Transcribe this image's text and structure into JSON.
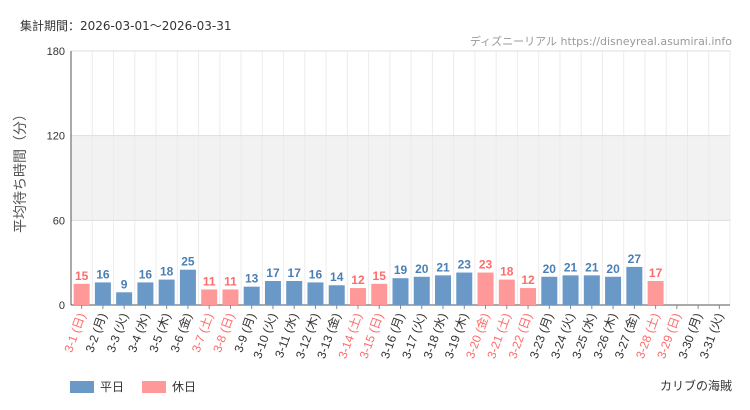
{
  "header": {
    "period": "集計期間：2026-03-01～2026-03-31",
    "credit": "ディズニーリアル https://disneyreal.asumirai.info"
  },
  "legend": {
    "weekday": "平日",
    "holiday": "休日"
  },
  "caption": "カリブの海賊",
  "colors": {
    "weekday": "#6a99c8",
    "holiday": "#ff9999",
    "weekday_text": "#4a7fb5",
    "holiday_text": "#ff6b6b",
    "band": "#f2f2f2"
  },
  "chart_data": {
    "type": "bar",
    "ylabel": "平均待ち時間（分）",
    "ylim": [
      0,
      180
    ],
    "yticks": [
      0,
      60,
      120,
      180
    ],
    "shaded_band": [
      60,
      120
    ],
    "grid": true,
    "legend_position": "bottom-left",
    "categories": [
      "3-1 (日)",
      "3-2 (月)",
      "3-3 (火)",
      "3-4 (水)",
      "3-5 (木)",
      "3-6 (金)",
      "3-7 (土)",
      "3-8 (日)",
      "3-9 (月)",
      "3-10 (火)",
      "3-11 (水)",
      "3-12 (木)",
      "3-13 (金)",
      "3-14 (土)",
      "3-15 (日)",
      "3-16 (月)",
      "3-17 (火)",
      "3-18 (水)",
      "3-19 (木)",
      "3-20 (金)",
      "3-21 (土)",
      "3-22 (日)",
      "3-23 (月)",
      "3-24 (火)",
      "3-25 (水)",
      "3-26 (木)",
      "3-27 (金)",
      "3-28 (土)",
      "3-29 (日)",
      "3-30 (月)",
      "3-31 (火)"
    ],
    "values": [
      15,
      16,
      9,
      16,
      18,
      25,
      11,
      11,
      13,
      17,
      17,
      16,
      14,
      12,
      15,
      19,
      20,
      21,
      23,
      23,
      18,
      12,
      20,
      21,
      21,
      20,
      27,
      17,
      null,
      null,
      null
    ],
    "day_type": [
      "holiday",
      "weekday",
      "weekday",
      "weekday",
      "weekday",
      "weekday",
      "holiday",
      "holiday",
      "weekday",
      "weekday",
      "weekday",
      "weekday",
      "weekday",
      "holiday",
      "holiday",
      "weekday",
      "weekday",
      "weekday",
      "weekday",
      "holiday",
      "holiday",
      "holiday",
      "weekday",
      "weekday",
      "weekday",
      "weekday",
      "weekday",
      "holiday",
      "holiday",
      "weekday",
      "weekday"
    ]
  }
}
